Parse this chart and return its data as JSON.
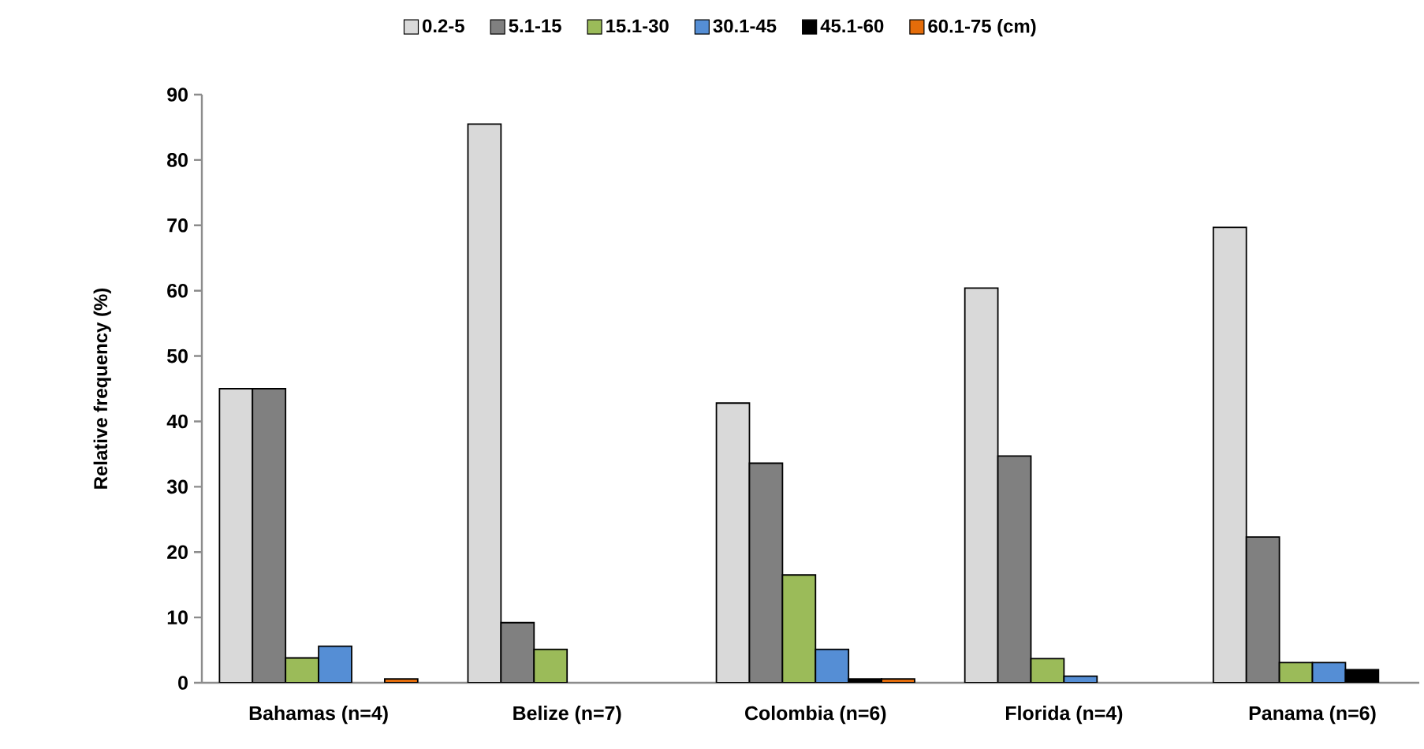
{
  "chart_data": {
    "type": "bar",
    "ylabel": "Relative frequency (%)",
    "categories": [
      "Bahamas (n=4)",
      "Belize (n=7)",
      "Colombia (n=6)",
      "Florida (n=4)",
      "Panama (n=6)"
    ],
    "series": [
      {
        "name": "0.2-5",
        "color": "#d9d9d9",
        "values": [
          45,
          85.5,
          42.8,
          60.4,
          69.7
        ]
      },
      {
        "name": "5.1-15",
        "color": "#808080",
        "values": [
          45,
          9.2,
          33.6,
          34.7,
          22.3
        ]
      },
      {
        "name": "15.1-30",
        "color": "#9bbb59",
        "values": [
          3.8,
          5.1,
          16.5,
          3.7,
          3.1
        ]
      },
      {
        "name": "30.1-45",
        "color": "#558ed5",
        "values": [
          5.6,
          null,
          5.1,
          1.0,
          3.1
        ]
      },
      {
        "name": "45.1-60",
        "color": "#000000",
        "values": [
          null,
          null,
          0.6,
          null,
          2.0
        ]
      },
      {
        "name": "60.1-75 (cm)",
        "color": "#e46c0a",
        "values": [
          0.6,
          null,
          0.6,
          null,
          null
        ]
      }
    ],
    "ylim": [
      0,
      90
    ],
    "yticks": [
      0,
      10,
      20,
      30,
      40,
      50,
      60,
      70,
      80,
      90
    ],
    "grid": false,
    "legend": "top"
  }
}
